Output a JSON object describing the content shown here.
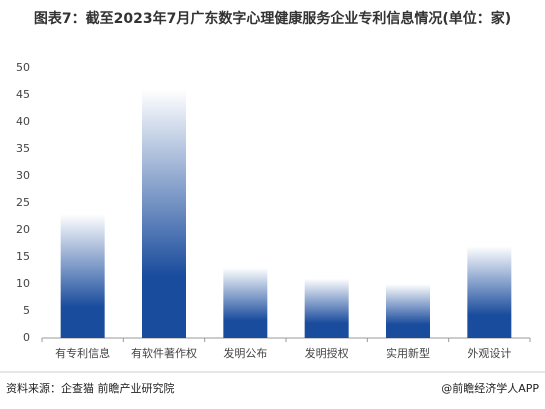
{
  "chart_data": {
    "type": "bar",
    "title": "图表7：截至2023年7月广东数字心理健康服务企业专利信息情况(单位：家)",
    "categories": [
      "有专利信息",
      "有软件著作权",
      "发明公布",
      "发明授权",
      "实用新型",
      "外观设计"
    ],
    "values": [
      23,
      46,
      13,
      11,
      10,
      17
    ],
    "color": "#1a4c9d",
    "ylim": [
      0,
      50
    ],
    "yticks": [
      0,
      5,
      10,
      15,
      20,
      25,
      30,
      35,
      40,
      45,
      50
    ],
    "grid": false
  },
  "footer": {
    "source": "资料来源：企查猫 前瞻产业研究院",
    "credit": "@前瞻经济学人APP"
  }
}
